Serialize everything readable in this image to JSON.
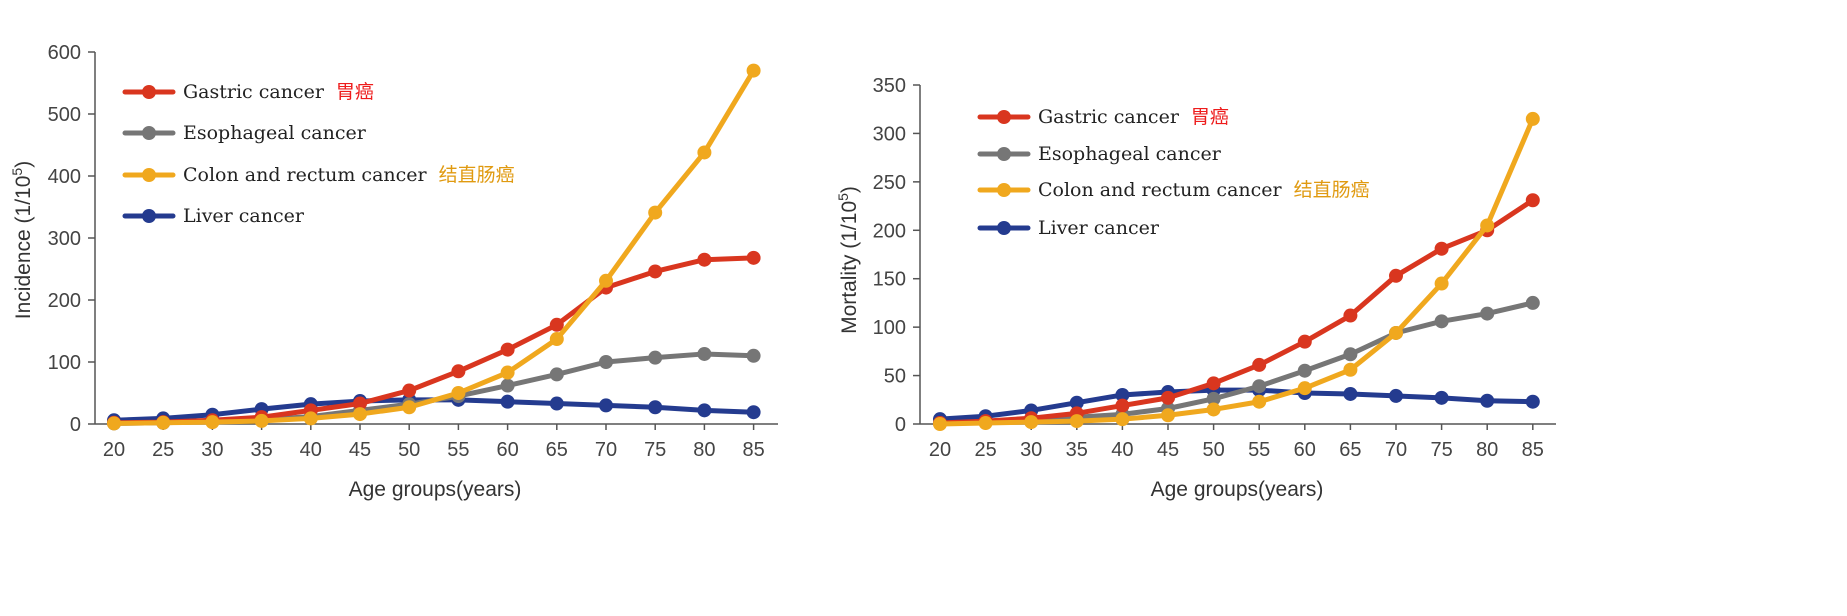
{
  "colors": {
    "gastric": "#d9361f",
    "esophageal": "#767676",
    "colon": "#f0a81e",
    "liver": "#243b8f",
    "axis": "#555555",
    "cn_gastric": "#ee1c1c",
    "cn_colon": "#e09a10"
  },
  "chart_data": [
    {
      "type": "line",
      "xlabel": "Age groups(years)",
      "ylabel": "Incidence  (1/10",
      "ylabel_sup": "5",
      "ylabel_close": ")",
      "ylim": [
        0,
        600
      ],
      "yticks": [
        0,
        100,
        200,
        300,
        400,
        500,
        600
      ],
      "categories": [
        "20",
        "25",
        "30",
        "35",
        "40",
        "45",
        "50",
        "55",
        "60",
        "65",
        "70",
        "75",
        "80",
        "85"
      ],
      "series": [
        {
          "key": "liver",
          "name": "Liver cancer",
          "cn": "",
          "values": [
            6,
            9,
            15,
            24,
            32,
            37,
            39,
            39,
            36,
            33,
            30,
            27,
            22,
            19
          ]
        },
        {
          "key": "esophageal",
          "name": "Esophageal cancer",
          "cn": "",
          "values": [
            1,
            2,
            4,
            7,
            12,
            22,
            32,
            45,
            62,
            80,
            100,
            107,
            113,
            110
          ]
        },
        {
          "key": "gastric",
          "name": "Gastric cancer",
          "cn": "胃癌",
          "values": [
            2,
            3,
            6,
            11,
            22,
            33,
            54,
            85,
            120,
            160,
            220,
            246,
            265,
            268
          ]
        },
        {
          "key": "colon",
          "name": "Colon and rectum cancer",
          "cn": "结直肠癌",
          "values": [
            1,
            2,
            3,
            5,
            9,
            16,
            27,
            50,
            83,
            137,
            231,
            341,
            438,
            570
          ]
        }
      ],
      "legend_order": [
        "gastric",
        "esophageal",
        "colon",
        "liver"
      ]
    },
    {
      "type": "line",
      "xlabel": "Age groups(years)",
      "ylabel": "Mortality  (1/10",
      "ylabel_sup": "5",
      "ylabel_close": ")",
      "ylim": [
        0,
        350
      ],
      "yticks": [
        0,
        50,
        100,
        150,
        200,
        250,
        300,
        350
      ],
      "categories": [
        "20",
        "25",
        "30",
        "35",
        "40",
        "45",
        "50",
        "55",
        "60",
        "65",
        "70",
        "75",
        "80",
        "85"
      ],
      "series": [
        {
          "key": "liver",
          "name": "Liver cancer",
          "cn": "",
          "values": [
            5,
            8,
            14,
            22,
            30,
            33,
            35,
            35,
            32,
            31,
            29,
            27,
            24,
            23
          ]
        },
        {
          "key": "esophageal",
          "name": "Esophageal cancer",
          "cn": "",
          "values": [
            1,
            2,
            4,
            7,
            10,
            16,
            26,
            39,
            55,
            72,
            94,
            106,
            114,
            125
          ]
        },
        {
          "key": "gastric",
          "name": "Gastric cancer",
          "cn": "胃癌",
          "values": [
            1,
            3,
            6,
            11,
            19,
            27,
            42,
            61,
            85,
            112,
            153,
            181,
            200,
            231
          ]
        },
        {
          "key": "colon",
          "name": "Colon and rectum cancer",
          "cn": "结直肠癌",
          "values": [
            0,
            1,
            2,
            3,
            5,
            9,
            15,
            23,
            37,
            56,
            94,
            145,
            205,
            315
          ]
        }
      ],
      "legend_order": [
        "gastric",
        "esophageal",
        "colon",
        "liver"
      ]
    }
  ]
}
